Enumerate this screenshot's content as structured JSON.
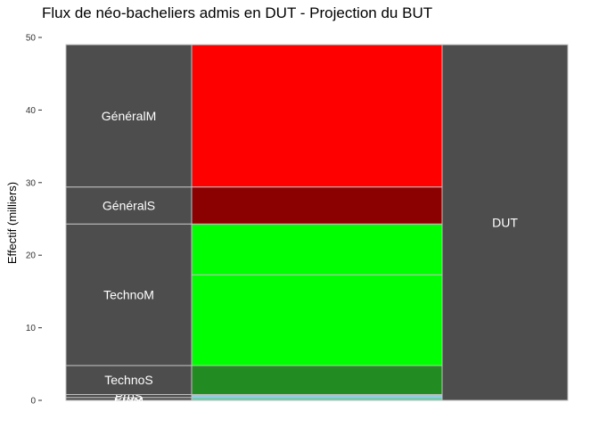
{
  "chart_data": {
    "type": "alluvial",
    "title": "Flux de néo-bacheliers admis en DUT - Projection du BUT",
    "ylabel": "Effectif (milliers)",
    "xlabel": "",
    "ylim": [
      0,
      50
    ],
    "y_ticks": [
      0,
      10,
      20,
      30,
      40,
      50
    ],
    "grid": false,
    "left_axis": {
      "strata": [
        {
          "label": "ProM",
          "from": 0,
          "to": 0.4
        },
        {
          "label": "ProS",
          "from": 0.4,
          "to": 0.8
        },
        {
          "label": "TechnoS",
          "from": 0.8,
          "to": 4.8
        },
        {
          "label": "TechnoM",
          "from": 4.8,
          "to": 24.3
        },
        {
          "label": "GénéralS",
          "from": 24.3,
          "to": 29.4
        },
        {
          "label": "GénéralM",
          "from": 29.4,
          "to": 49
        }
      ]
    },
    "right_axis": {
      "strata": [
        {
          "label": "DUT",
          "from": 0,
          "to": 49
        }
      ]
    },
    "flows": [
      {
        "from": 0,
        "to": 0.4,
        "color": "#66cdaa"
      },
      {
        "from": 0.4,
        "to": 0.8,
        "color": "#87ceeb"
      },
      {
        "from": 0.8,
        "to": 4.8,
        "color": "#228b22"
      },
      {
        "from": 4.8,
        "to": 17.3,
        "color": "#00ff00"
      },
      {
        "from": 17.3,
        "to": 24.3,
        "color": "#00ff00"
      },
      {
        "from": 24.3,
        "to": 29.4,
        "color": "#8b0000"
      },
      {
        "from": 29.4,
        "to": 49,
        "color": "#ff0000"
      }
    ],
    "colors": {
      "stratum_fill": "#4d4d4d",
      "stratum_border": "#c0c0c0"
    }
  }
}
